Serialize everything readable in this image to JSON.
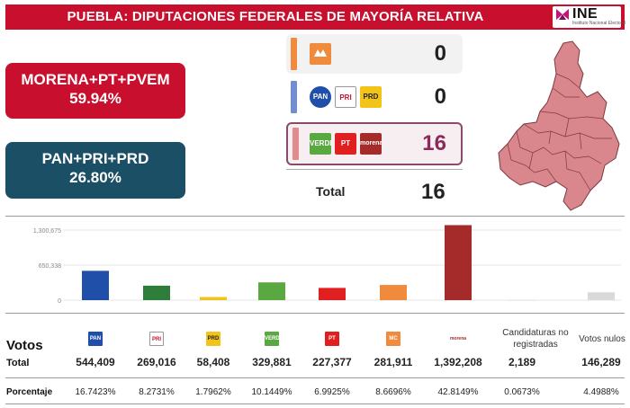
{
  "header": {
    "title": "PUEBLA: DIPUTACIONES FEDERALES DE MAYORÍA RELATIVA",
    "logo_text": "INE",
    "logo_sub": "Instituto Nacional Electoral"
  },
  "coalitions": [
    {
      "name": "MORENA+PT+PVEM",
      "pct": "59.94%",
      "color": "#c8102e"
    },
    {
      "name": "PAN+PRI+PRD",
      "pct": "26.80%",
      "color": "#1b4f66"
    }
  ],
  "seats": {
    "rows": [
      {
        "count": "0",
        "strip_color": "#f08a3c"
      },
      {
        "count": "0",
        "strip_color": "#6f8fd0"
      },
      {
        "count": "16",
        "strip_color": "#e08c8c"
      }
    ],
    "total_label": "Total",
    "total_value": "16"
  },
  "logos": {
    "mc": "MC",
    "pan": "PAN",
    "pri": "PRI",
    "prd": "PRD",
    "verde": "VERDE",
    "pt": "PT",
    "morena": "morena"
  },
  "chart_data": {
    "type": "bar",
    "categories": [
      "PAN",
      "PRI",
      "PRD",
      "PVEM",
      "PT",
      "MC",
      "MORENA",
      "Candidaturas no registradas",
      "Votos nulos"
    ],
    "values": [
      544409,
      269016,
      58408,
      329881,
      227377,
      281911,
      1392208,
      2189,
      146289
    ],
    "colors": [
      "#1f4fa8",
      "#2e7d3a",
      "#f2c318",
      "#5aa840",
      "#e02020",
      "#f08a3c",
      "#a52a2a",
      "#d0d0d0",
      "#d9d9d9"
    ],
    "y_ticks": [
      "1,300,675",
      "650,338",
      "0"
    ],
    "ylim": [
      0,
      1300675
    ],
    "grid": true
  },
  "table": {
    "votos_label": "Votos",
    "total_label": "Total",
    "pct_label": "Porcentaje",
    "no_reg_header": "Candidaturas no registradas",
    "nulos_header": "Votos nulos",
    "totals": [
      "544,409",
      "269,016",
      "58,408",
      "329,881",
      "227,377",
      "281,911",
      "1,392,208",
      "2,189",
      "146,289"
    ],
    "percents": [
      "16.7423%",
      "8.2731%",
      "1.7962%",
      "10.1449%",
      "6.9925%",
      "8.6696%",
      "42.8149%",
      "0.0673%",
      "4.4988%"
    ]
  }
}
